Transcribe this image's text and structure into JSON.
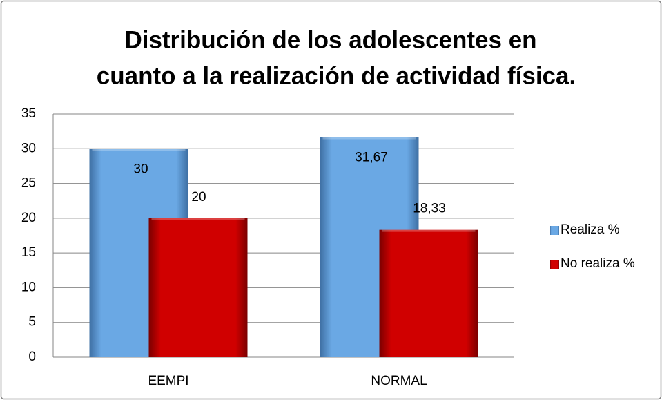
{
  "chart_data": {
    "type": "bar",
    "title": [
      "Distribución de los adolescentes en",
      "cuanto a la realización de actividad física."
    ],
    "categories": [
      "EEMPI",
      "NORMAL"
    ],
    "series": [
      {
        "name": "Realiza %",
        "color": "#5b9bd5",
        "values": [
          30,
          31.67
        ],
        "value_labels": [
          "30",
          "31,67"
        ]
      },
      {
        "name": "No realiza %",
        "color": "#c00000",
        "values": [
          20,
          18.33
        ],
        "value_labels": [
          "20",
          "18,33"
        ]
      }
    ],
    "ylim": [
      0,
      35
    ],
    "yticks": [
      0,
      5,
      10,
      15,
      20,
      25,
      30,
      35
    ],
    "grid": true,
    "legend": "right"
  }
}
